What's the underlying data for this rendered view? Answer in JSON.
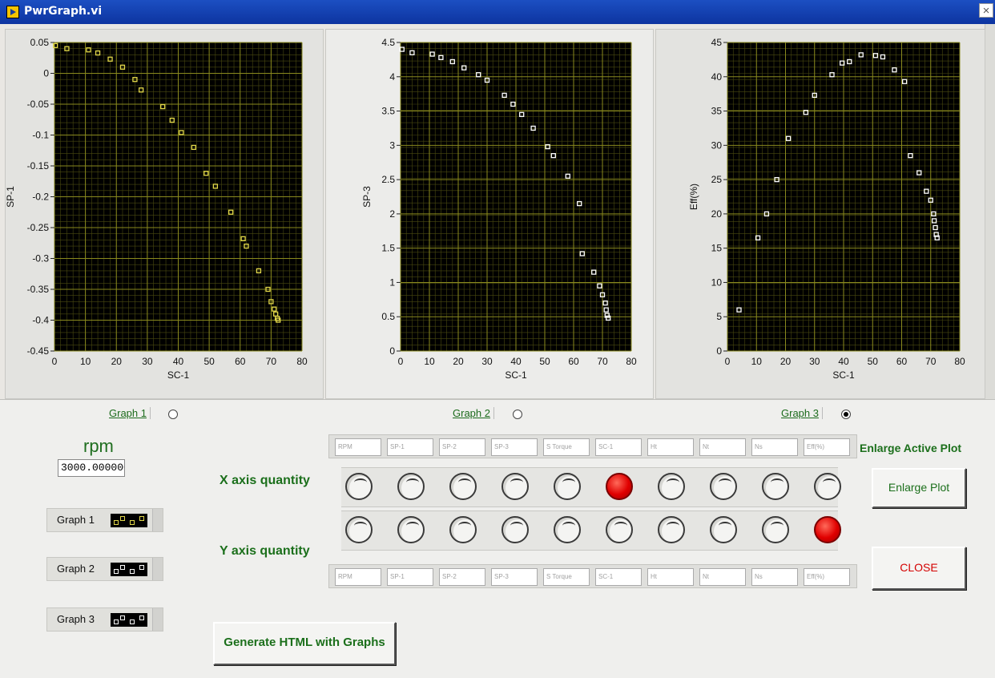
{
  "window": {
    "title": "PwrGraph.vi",
    "close_glyph": "×"
  },
  "chart_data": [
    {
      "type": "scatter",
      "xlabel": "SC-1",
      "ylabel": "SP-1",
      "xlim": [
        0,
        80
      ],
      "ylim": [
        -0.45,
        0.05
      ],
      "xticks": [
        0,
        10,
        20,
        30,
        40,
        50,
        60,
        70,
        80
      ],
      "yticks": [
        0.05,
        0,
        -0.05,
        -0.1,
        -0.15,
        -0.2,
        -0.25,
        -0.3,
        -0.35,
        -0.4,
        -0.45
      ],
      "ytick_labels": [
        "0.05",
        "0",
        "-0.05",
        "-0.1",
        "-0.15",
        "-0.2",
        "-0.25",
        "-0.3",
        "-0.35",
        "-0.4",
        "-0.45"
      ],
      "marker_color": "#e2d84a",
      "grid": true,
      "x": [
        0.3,
        4,
        11,
        14,
        18,
        22,
        26,
        28,
        35,
        38,
        41,
        45,
        49,
        52,
        57,
        61,
        62,
        66,
        69,
        70,
        71,
        71.5,
        72,
        72.3
      ],
      "y": [
        0.045,
        0.04,
        0.038,
        0.033,
        0.023,
        0.01,
        -0.01,
        -0.027,
        -0.054,
        -0.076,
        -0.096,
        -0.12,
        -0.162,
        -0.183,
        -0.225,
        -0.268,
        -0.28,
        -0.32,
        -0.35,
        -0.37,
        -0.382,
        -0.39,
        -0.397,
        -0.4
      ]
    },
    {
      "type": "scatter",
      "xlabel": "SC-1",
      "ylabel": "SP-3",
      "xlim": [
        0,
        80
      ],
      "ylim": [
        0,
        4.5
      ],
      "xticks": [
        0,
        10,
        20,
        30,
        40,
        50,
        60,
        70,
        80
      ],
      "yticks": [
        0,
        0.5,
        1,
        1.5,
        2,
        2.5,
        3,
        3.5,
        4,
        4.5
      ],
      "ytick_labels": [
        "0",
        "0.5",
        "1",
        "1.5",
        "2",
        "2.5",
        "3",
        "3.5",
        "4",
        "4.5"
      ],
      "marker_color": "#ffffff",
      "grid": true,
      "x": [
        0.5,
        4,
        11,
        14,
        18,
        22,
        27,
        30,
        36,
        39,
        42,
        46,
        51,
        53,
        58,
        62,
        63,
        67,
        69,
        70,
        71,
        71.3,
        71.6,
        72
      ],
      "y": [
        4.4,
        4.35,
        4.33,
        4.28,
        4.22,
        4.13,
        4.03,
        3.95,
        3.73,
        3.6,
        3.45,
        3.25,
        2.98,
        2.85,
        2.55,
        2.15,
        1.42,
        1.15,
        0.95,
        0.82,
        0.7,
        0.6,
        0.52,
        0.48
      ]
    },
    {
      "type": "scatter",
      "xlabel": "SC-1",
      "ylabel": "Eff(%)",
      "xlim": [
        0,
        80
      ],
      "ylim": [
        0,
        45
      ],
      "xticks": [
        0,
        10,
        20,
        30,
        40,
        50,
        60,
        70,
        80
      ],
      "yticks": [
        0,
        5,
        10,
        15,
        20,
        25,
        30,
        35,
        40,
        45
      ],
      "ytick_labels": [
        "0",
        "5",
        "10",
        "15",
        "20",
        "25",
        "30",
        "35",
        "40",
        "45"
      ],
      "marker_color": "#ffffff",
      "grid": true,
      "x": [
        4,
        10.5,
        13.5,
        17,
        21,
        27,
        30,
        36,
        39.5,
        42,
        46,
        51,
        53.5,
        57.5,
        61,
        63,
        66,
        68.5,
        70,
        71,
        71.2,
        71.6,
        71.9,
        72.2
      ],
      "y": [
        6,
        16.5,
        20,
        25,
        31,
        34.8,
        37.3,
        40.3,
        42,
        42.2,
        43.2,
        43.1,
        42.9,
        41,
        39.3,
        28.5,
        26,
        23.3,
        22,
        20,
        19,
        18,
        17,
        16.5
      ]
    }
  ],
  "graph_selectors": [
    {
      "label": "Graph 1",
      "selected": false
    },
    {
      "label": "Graph 2",
      "selected": false
    },
    {
      "label": "Graph 3",
      "selected": true
    }
  ],
  "rpm": {
    "label": "rpm",
    "value": "3000.000000"
  },
  "legend_controls": [
    {
      "label": "Graph 1"
    },
    {
      "label": "Graph 2"
    },
    {
      "label": "Graph 3"
    }
  ],
  "x_axis": {
    "label": "X axis quantity",
    "fields": [
      "RPM",
      "SP-1",
      "SP-2",
      "SP-3",
      "S Torque",
      "SC-1",
      "Ht",
      "Nt",
      "Ns",
      "Eff(%)"
    ],
    "selected_index": 5
  },
  "y_axis": {
    "label": "Y axis quantity",
    "fields": [
      "RPM",
      "SP-1",
      "SP-2",
      "SP-3",
      "S Torque",
      "SC-1",
      "Ht",
      "Nt",
      "Ns",
      "Eff(%)"
    ],
    "selected_index": 9
  },
  "enlarge": {
    "heading": "Enlarge Active Plot",
    "button": "Enlarge Plot"
  },
  "close_button": "CLOSE",
  "generate_button": "Generate  HTML with  Graphs",
  "colors": {
    "plot_bg": "#000000",
    "grid_major": "#8a8a1e",
    "grid_minor": "#4a4a10",
    "green_text": "#1b6f1b",
    "led_on": "#e00000",
    "close_text": "#d40000"
  }
}
